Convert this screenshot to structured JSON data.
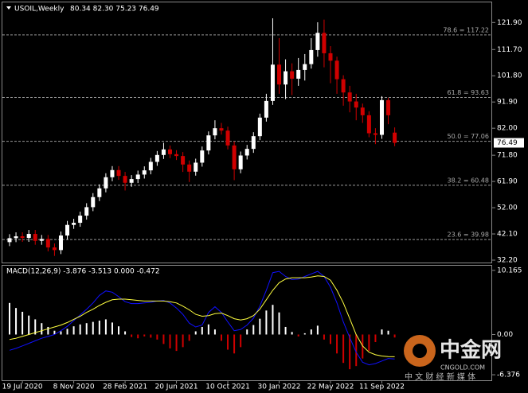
{
  "chart_data": {
    "type": "candlestick",
    "title": "USOIL,Weekly",
    "header_values": "80.34 82.30 75.23 76.49",
    "categories": [
      null,
      null,
      "19 Jul 2020",
      null,
      null,
      null,
      null,
      null,
      null,
      null,
      "8 Nov 2020",
      null,
      null,
      null,
      null,
      null,
      null,
      null,
      "28 Feb 2021",
      null,
      null,
      null,
      null,
      null,
      null,
      null,
      "20 Jun 2021",
      null,
      null,
      null,
      null,
      null,
      null,
      null,
      "10 Oct 2021",
      null,
      null,
      null,
      null,
      null,
      null,
      null,
      "30 Jan 2022",
      null,
      null,
      null,
      null,
      null,
      null,
      null,
      "22 May 2022",
      null,
      null,
      null,
      null,
      null,
      null,
      null,
      "11 Sep 2022",
      null,
      null
    ],
    "open": [
      39.0,
      40.5,
      41.2,
      40.6,
      42.1,
      39.5,
      40.2,
      37.0,
      36.0,
      41.5,
      45.5,
      46.3,
      49.0,
      52.2,
      56.0,
      59.3,
      63.5,
      66.2,
      64.0,
      61.4,
      62.8,
      64.5,
      66.1,
      69.3,
      71.9,
      74.0,
      72.2,
      71.5,
      68.3,
      65.6,
      69.0,
      73.6,
      79.3,
      82.0,
      81.1,
      75.5,
      66.5,
      71.7,
      74.2,
      79.0,
      86.0,
      92.3,
      106.0,
      98.5,
      103.5,
      100.7,
      104.0,
      106.2,
      111.5,
      118.0,
      110.3,
      107.5,
      100.5,
      95.5,
      92.1,
      89.8,
      86.9,
      80.1,
      79.5,
      92.6,
      80.34
    ],
    "high": [
      42.0,
      42.7,
      42.7,
      43.6,
      43.6,
      41.7,
      41.7,
      38.5,
      43.0,
      47.0,
      47.8,
      50.5,
      53.7,
      57.5,
      60.8,
      65.0,
      67.7,
      67.7,
      65.5,
      64.3,
      66.0,
      67.6,
      70.8,
      73.4,
      76.5,
      75.5,
      73.7,
      73.0,
      69.8,
      70.5,
      75.1,
      80.8,
      85.0,
      84.0,
      82.6,
      77.0,
      73.2,
      75.7,
      80.5,
      87.5,
      95.0,
      123.5,
      116.0,
      108.0,
      106.5,
      108.5,
      110.0,
      116.0,
      122.0,
      123.0,
      113.0,
      109.0,
      102.0,
      98.0,
      95.0,
      91.3,
      88.4,
      82.0,
      94.1,
      93.5,
      82.3
    ],
    "low": [
      37.5,
      39.0,
      39.1,
      39.1,
      38.0,
      38.0,
      35.5,
      33.8,
      34.5,
      40.0,
      44.0,
      44.8,
      47.5,
      50.7,
      54.5,
      57.8,
      62.0,
      62.5,
      58.5,
      59.9,
      61.3,
      63.0,
      64.6,
      67.8,
      70.4,
      70.7,
      70.0,
      65.5,
      61.7,
      64.1,
      67.5,
      72.1,
      77.8,
      79.6,
      74.0,
      62.4,
      65.0,
      70.2,
      72.7,
      77.5,
      84.5,
      90.8,
      95.0,
      93.0,
      94.5,
      98.0,
      100.0,
      104.5,
      109.0,
      105.0,
      99.0,
      95.0,
      90.5,
      88.0,
      85.0,
      84.0,
      78.6,
      76.0,
      78.0,
      83.5,
      75.23
    ],
    "close": [
      40.5,
      41.2,
      40.6,
      42.1,
      39.5,
      40.2,
      37.0,
      36.0,
      41.5,
      45.5,
      46.3,
      49.0,
      52.2,
      56.0,
      59.3,
      63.5,
      66.2,
      64.0,
      61.4,
      62.8,
      64.5,
      66.1,
      69.3,
      71.9,
      74.0,
      72.2,
      71.5,
      68.3,
      65.6,
      69.0,
      73.6,
      79.3,
      82.0,
      81.1,
      75.5,
      66.5,
      71.7,
      74.2,
      79.0,
      86.0,
      92.3,
      106.0,
      98.5,
      103.5,
      100.7,
      104.0,
      106.2,
      111.5,
      118.0,
      110.3,
      107.5,
      100.5,
      95.5,
      92.1,
      89.8,
      86.9,
      80.1,
      79.5,
      92.6,
      86.9,
      76.49
    ],
    "up_color": "#ffffff",
    "down_color": "#d00000",
    "ylim": [
      31.3,
      129.5
    ],
    "yticks": [
      {
        "value": 121.9,
        "label": "121.90"
      },
      {
        "value": 111.7,
        "label": "111.70"
      },
      {
        "value": 101.8,
        "label": "101.80"
      },
      {
        "value": 91.9,
        "label": "91.90"
      },
      {
        "value": 82,
        "label": "82.00"
      },
      {
        "value": 71.8,
        "label": "71.80"
      },
      {
        "value": 61.9,
        "label": "61.90"
      },
      {
        "value": 52,
        "label": "52.00"
      },
      {
        "value": 42.1,
        "label": "42.10"
      },
      {
        "value": 32.2,
        "label": "32.20"
      }
    ],
    "levels": [
      {
        "label": "78.6 = 117.22",
        "value": 117.22
      },
      {
        "label": "61.8 = 93.63",
        "value": 93.63
      },
      {
        "label": "50.0 = 77.06",
        "value": 77.06
      },
      {
        "label": "38.2 = 60.48",
        "value": 60.48
      },
      {
        "label": "23.6 = 39.98",
        "value": 39.98
      }
    ],
    "macd": {
      "title": "MACD(12,26,9) -3.876 -3.513 0.000 -0.472",
      "ylim": [
        -7.25,
        10.9
      ],
      "yticks": [
        10.165,
        {
          "value": 0,
          "label": "0.00"
        },
        -6.376
      ],
      "histogram": [
        5.0,
        4.2,
        3.6,
        3.0,
        2.4,
        1.8,
        1.2,
        0.6,
        0.5,
        0.9,
        1.3,
        1.6,
        1.8,
        2.0,
        2.2,
        2.4,
        1.9,
        1.3,
        0.5,
        -0.4,
        -0.6,
        -0.3,
        -0.5,
        -0.8,
        -1.5,
        -2.2,
        -2.6,
        -2.0,
        -1.0,
        0.5,
        1.2,
        1.6,
        0.8,
        -1.0,
        -2.4,
        -3.0,
        -2.0,
        0.8,
        1.5,
        2.5,
        3.8,
        4.7,
        3.5,
        1.2,
        0.4,
        -0.3,
        0.2,
        0.8,
        1.4,
        -0.8,
        -1.5,
        -3.0,
        -4.5,
        -5.5,
        -5.0,
        -3.8,
        -2.6,
        -1.2,
        0.8,
        0.6,
        -0.472
      ],
      "pos_color": "#ffffff",
      "neg_color": "#d00000",
      "lines": [
        {
          "color": "#1010ff",
          "values": [
            -2.5,
            -2.2,
            -1.8,
            -1.4,
            -1.0,
            -0.6,
            -0.3,
            0.0,
            0.6,
            1.3,
            2.2,
            3.1,
            4.0,
            5.0,
            6.2,
            6.9,
            6.7,
            6.0,
            5.2,
            4.9,
            4.9,
            5.0,
            5.1,
            5.3,
            5.4,
            5.0,
            4.2,
            3.2,
            1.8,
            1.2,
            1.5,
            3.5,
            4.4,
            3.5,
            2.0,
            0.6,
            0.8,
            1.5,
            2.6,
            4.5,
            7.0,
            9.8,
            10.0,
            9.2,
            8.7,
            8.8,
            9.2,
            9.6,
            10.0,
            9.2,
            7.5,
            5.0,
            2.0,
            -0.5,
            -2.8,
            -4.4,
            -4.8,
            -4.6,
            -4.2,
            -3.8,
            -3.876
          ]
        },
        {
          "color": "#ffff40",
          "values": [
            -0.8,
            -0.6,
            -0.3,
            0.0,
            0.3,
            0.6,
            0.9,
            1.2,
            1.5,
            1.9,
            2.4,
            2.9,
            3.5,
            4.0,
            4.6,
            5.1,
            5.5,
            5.6,
            5.6,
            5.5,
            5.4,
            5.3,
            5.3,
            5.3,
            5.3,
            5.2,
            5.0,
            4.5,
            3.9,
            3.2,
            2.9,
            3.0,
            3.3,
            3.4,
            3.0,
            2.5,
            2.3,
            2.5,
            3.0,
            4.0,
            5.5,
            7.0,
            8.2,
            8.8,
            9.0,
            9.0,
            9.0,
            9.1,
            9.3,
            9.2,
            8.6,
            7.0,
            5.0,
            2.5,
            0.0,
            -1.8,
            -2.8,
            -3.2,
            -3.4,
            -3.5,
            -3.513
          ]
        }
      ]
    }
  },
  "watermark": {
    "brand": "中金网",
    "site": "CNGOLD.COM",
    "slogan": "中 文 财 经 新 媒 体"
  }
}
